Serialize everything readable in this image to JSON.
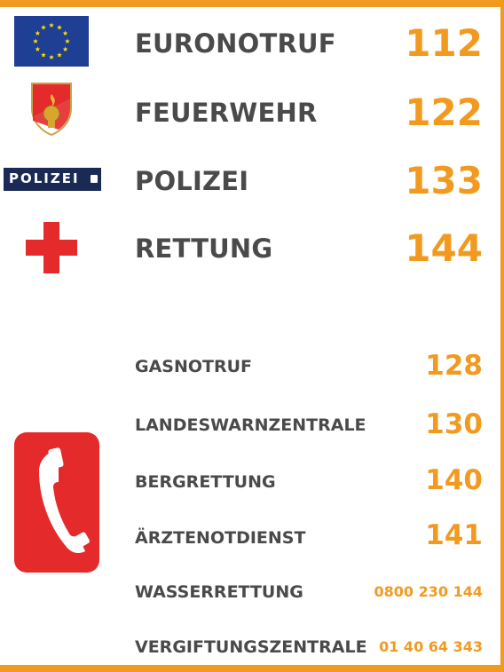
{
  "primary": [
    {
      "label": "EURONOTRUF",
      "number": "112",
      "icon": "eu-flag-icon"
    },
    {
      "label": "FEUERWEHR",
      "number": "122",
      "icon": "fire-brigade-crest-icon"
    },
    {
      "label": "POLIZEI",
      "number": "133",
      "icon": "police-badge-icon"
    },
    {
      "label": "RETTUNG",
      "number": "144",
      "icon": "red-cross-icon"
    }
  ],
  "secondary": [
    {
      "label": "GASNOTRUF",
      "number": "128"
    },
    {
      "label": "LANDESWARNZENTRALE",
      "number": "130"
    },
    {
      "label": "BERGRETTUNG",
      "number": "140"
    },
    {
      "label": "ÄRZTENOTDIENST",
      "number": "141"
    },
    {
      "label": "WASSERRETTUNG",
      "number": "0800 230 144"
    },
    {
      "label": "VERGIFTUNGSZENTRALE",
      "number": "01 40 64 343"
    }
  ],
  "police_badge_text": "POLIZEI",
  "secondary_icon": "telephone-icon",
  "colors": {
    "accent": "#f29a20",
    "label": "#4a4a4a",
    "eu_blue": "#1f3f95",
    "police_blue": "#1b2a55",
    "red": "#e42a2a"
  }
}
